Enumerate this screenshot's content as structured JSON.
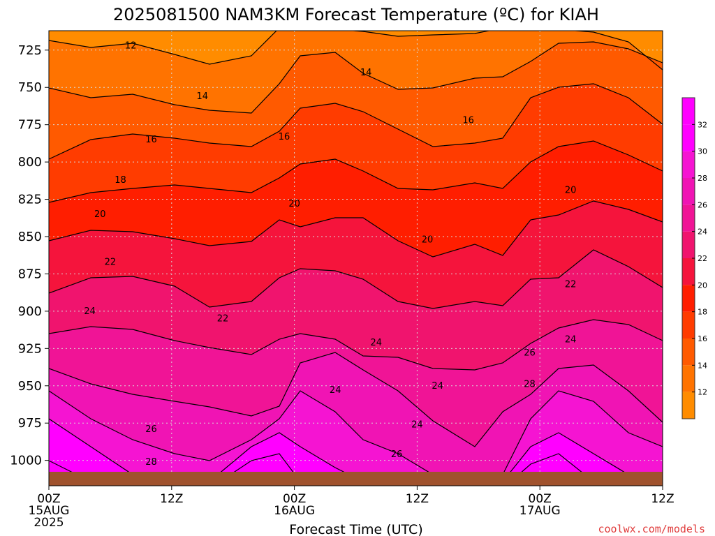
{
  "title": "2025081500 NAM3KM Forecast Temperature (ºC) for KIAH",
  "xaxis_title": "Forecast Time (UTC)",
  "credit": "coolwx.com/models",
  "colors": {
    "ground": "#a0522d",
    "credit": "#e03c3c",
    "levels": [
      "#ff8c00",
      "#ff7300",
      "#ff5a00",
      "#ff3c00",
      "#ff1e00",
      "#f5143c",
      "#f0146e",
      "#f01496",
      "#f014b4",
      "#f514d2",
      "#ff00ff"
    ]
  },
  "chart_data": {
    "type": "heatmap",
    "title": "2025081500 NAM3KM Forecast Temperature (ºC) for KIAH",
    "xlabel": "Forecast Time (UTC)",
    "ylabel": "",
    "x_ticks": [
      {
        "label": "00Z",
        "sub": "15AUG",
        "sub2": "2025",
        "hour": 0
      },
      {
        "label": "12Z",
        "sub": "",
        "sub2": "",
        "hour": 12
      },
      {
        "label": "00Z",
        "sub": "16AUG",
        "sub2": "",
        "hour": 24
      },
      {
        "label": "12Z",
        "sub": "",
        "sub2": "",
        "hour": 36
      },
      {
        "label": "00Z",
        "sub": "17AUG",
        "sub2": "",
        "hour": 48
      },
      {
        "label": "12Z",
        "sub": "",
        "sub2": "",
        "hour": 60
      }
    ],
    "xlim_hours": [
      0,
      60
    ],
    "y_axis": "pressure (hPa), inverted",
    "y_ticks": [
      725,
      750,
      775,
      800,
      825,
      850,
      875,
      900,
      925,
      950,
      975,
      1000
    ],
    "ylim": [
      712,
      1017
    ],
    "ground_top_hpa": 1008,
    "colorbar_ticks": [
      12,
      14,
      16,
      18,
      20,
      22,
      24,
      26,
      28,
      30,
      32
    ],
    "colorbar_range": [
      10,
      34
    ],
    "contour_interval": 2,
    "contour_labels": [
      {
        "text": "12",
        "hour": 8,
        "hpa": 722
      },
      {
        "text": "14",
        "hour": 15,
        "hpa": 756
      },
      {
        "text": "14",
        "hour": 31,
        "hpa": 740
      },
      {
        "text": "16",
        "hour": 10,
        "hpa": 785
      },
      {
        "text": "16",
        "hour": 23,
        "hpa": 783
      },
      {
        "text": "16",
        "hour": 41,
        "hpa": 772
      },
      {
        "text": "18",
        "hour": 7,
        "hpa": 812
      },
      {
        "text": "20",
        "hour": 5,
        "hpa": 835
      },
      {
        "text": "20",
        "hour": 24,
        "hpa": 828
      },
      {
        "text": "20",
        "hour": 37,
        "hpa": 852
      },
      {
        "text": "20",
        "hour": 51,
        "hpa": 819
      },
      {
        "text": "22",
        "hour": 6,
        "hpa": 867
      },
      {
        "text": "22",
        "hour": 17,
        "hpa": 905
      },
      {
        "text": "22",
        "hour": 51,
        "hpa": 882
      },
      {
        "text": "24",
        "hour": 4,
        "hpa": 900
      },
      {
        "text": "24",
        "hour": 32,
        "hpa": 921
      },
      {
        "text": "24",
        "hour": 28,
        "hpa": 953
      },
      {
        "text": "24",
        "hour": 38,
        "hpa": 950
      },
      {
        "text": "24",
        "hour": 36,
        "hpa": 976
      },
      {
        "text": "24",
        "hour": 51,
        "hpa": 919
      },
      {
        "text": "26",
        "hour": 10,
        "hpa": 979
      },
      {
        "text": "26",
        "hour": 34,
        "hpa": 996
      },
      {
        "text": "26",
        "hour": 47,
        "hpa": 928
      },
      {
        "text": "28",
        "hour": 10,
        "hpa": 1001
      },
      {
        "text": "28",
        "hour": 47,
        "hpa": 949
      }
    ],
    "grid": true,
    "legend": "colorbar right"
  }
}
